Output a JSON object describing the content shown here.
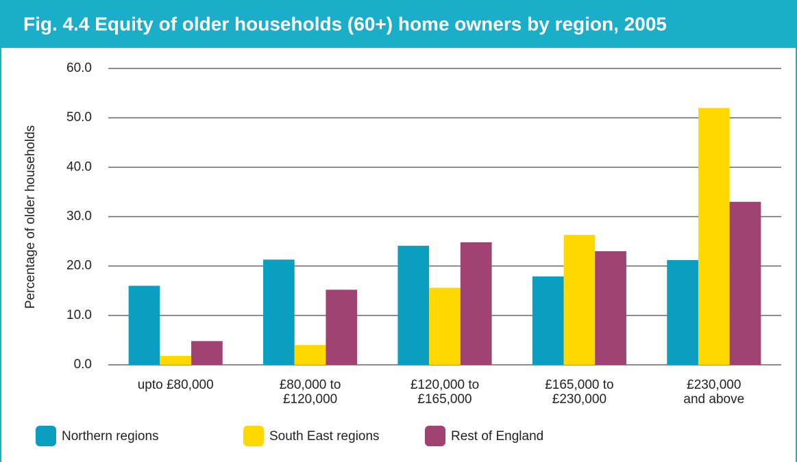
{
  "chart_data": {
    "type": "bar",
    "title": "Fig. 4.4 Equity of older households (60+) home owners by region, 2005",
    "ylabel": "Percentage of older households",
    "categories": [
      [
        "upto £80,000"
      ],
      [
        "£80,000 to",
        "£120,000"
      ],
      [
        "£120,000 to",
        "£165,000"
      ],
      [
        "£165,000 to",
        "£230,000"
      ],
      [
        "£230,000",
        "and above"
      ]
    ],
    "series": [
      {
        "name": "Northern regions",
        "color": "#0a9fc0",
        "values": [
          16.0,
          21.3,
          24.1,
          17.9,
          21.2
        ]
      },
      {
        "name": "South East regions",
        "color": "#ffd800",
        "values": [
          1.8,
          4.0,
          15.6,
          26.3,
          52.0
        ]
      },
      {
        "name": "Rest of England",
        "color": "#a04272",
        "values": [
          4.8,
          15.2,
          24.8,
          23.0,
          33.0
        ]
      }
    ],
    "ylim": [
      0,
      60
    ],
    "yticks": [
      {
        "value": 0,
        "label": "0.0"
      },
      {
        "value": 10,
        "label": "10.0"
      },
      {
        "value": 20,
        "label": "20.0"
      },
      {
        "value": 30,
        "label": "30.0"
      },
      {
        "value": 40,
        "label": "40.0"
      },
      {
        "value": 50,
        "label": "50.0"
      },
      {
        "value": 60,
        "label": "60.0"
      }
    ],
    "grid": true,
    "legend": "bottom"
  }
}
